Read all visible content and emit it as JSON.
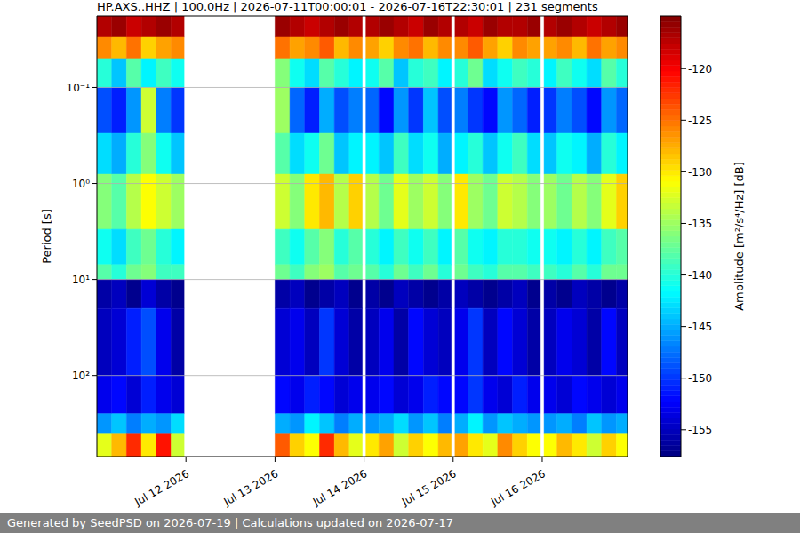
{
  "chart_data": {
    "type": "heatmap",
    "title": "HP.AXS..HHZ | 100.0Hz | 2026-07-11T00:00:01 - 2026-07-16T22:30:01 | 231 segments",
    "ylabel": "Period [s]",
    "footer": "Generated by SeedPSD on 2026-07-19 | Calculations updated on 2026-07-17",
    "log": "y",
    "grid": "y",
    "xlim": [
      "2026-07-11T00:00",
      "2026-07-16T23:00"
    ],
    "xticks": [
      {
        "value": "2026-07-12T00:00",
        "label": "Jul 12 2026"
      },
      {
        "value": "2026-07-13T00:00",
        "label": "Jul 13 2026"
      },
      {
        "value": "2026-07-14T00:00",
        "label": "Jul 14 2026"
      },
      {
        "value": "2026-07-15T00:00",
        "label": "Jul 15 2026"
      },
      {
        "value": "2026-07-16T00:00",
        "label": "Jul 16 2026"
      }
    ],
    "ylim": [
      0.018,
      700
    ],
    "yticks": [
      {
        "value": 0.1,
        "label": "10⁻¹"
      },
      {
        "value": 1,
        "label": "10⁰"
      },
      {
        "value": 10,
        "label": "10¹"
      },
      {
        "value": 100,
        "label": "10²"
      }
    ],
    "x_edges": [
      "2026-07-11T00:00",
      "2026-07-11T04:00",
      "2026-07-11T08:00",
      "2026-07-11T12:00",
      "2026-07-11T16:00",
      "2026-07-11T20:00",
      "2026-07-11T23:30",
      "2026-07-13T00:00",
      "2026-07-13T04:00",
      "2026-07-13T08:00",
      "2026-07-13T12:00",
      "2026-07-13T16:00",
      "2026-07-13T20:00",
      "2026-07-13T23:30",
      "2026-07-14T00:30",
      "2026-07-14T04:00",
      "2026-07-14T08:00",
      "2026-07-14T12:00",
      "2026-07-14T16:00",
      "2026-07-14T20:00",
      "2026-07-14T23:30",
      "2026-07-15T00:30",
      "2026-07-15T04:00",
      "2026-07-15T08:00",
      "2026-07-15T12:00",
      "2026-07-15T16:00",
      "2026-07-15T20:00",
      "2026-07-15T23:30",
      "2026-07-16T00:30",
      "2026-07-16T04:00",
      "2026-07-16T08:00",
      "2026-07-16T12:00",
      "2026-07-16T16:00",
      "2026-07-16T20:00",
      "2026-07-16T23:00"
    ],
    "y_edges": [
      0.018,
      0.03,
      0.05,
      0.1,
      0.3,
      0.8,
      3,
      7,
      10,
      20,
      100,
      250,
      400,
      700
    ],
    "cells": [
      [
        -117,
        -116,
        -118,
        -117,
        -116,
        -117,
        null,
        -116,
        -117,
        -118,
        -117,
        -116,
        -117,
        null,
        -117,
        -116,
        -117,
        -118,
        -116,
        -117,
        null,
        -117,
        -118,
        -116,
        -117,
        -117,
        -116,
        null,
        -117,
        -116,
        -117,
        -118,
        -117,
        -116
      ],
      [
        -126,
        -128,
        -125,
        -129,
        -127,
        -126,
        null,
        -125,
        -127,
        -126,
        -124,
        -128,
        -126,
        null,
        -127,
        -129,
        -126,
        -125,
        -128,
        -126,
        null,
        -126,
        -124,
        -127,
        -129,
        -126,
        -127,
        null,
        -127,
        -126,
        -128,
        -125,
        -127,
        -126
      ],
      [
        -140,
        -144,
        -138,
        -142,
        -139,
        -141,
        null,
        -136,
        -141,
        -143,
        -138,
        -140,
        -142,
        null,
        -141,
        -138,
        -144,
        -140,
        -139,
        -142,
        null,
        -140,
        -137,
        -143,
        -141,
        -139,
        -140,
        null,
        -142,
        -139,
        -141,
        -143,
        -138,
        -140
      ],
      [
        -149,
        -151,
        -146,
        -133,
        -147,
        -150,
        null,
        -135,
        -148,
        -151,
        -145,
        -149,
        -147,
        null,
        -148,
        -152,
        -146,
        -150,
        -144,
        -149,
        null,
        -147,
        -150,
        -152,
        -146,
        -148,
        -151,
        null,
        -150,
        -147,
        -149,
        -152,
        -146,
        -148
      ],
      [
        -143,
        -145,
        -140,
        -136,
        -141,
        -144,
        null,
        -138,
        -143,
        -141,
        -137,
        -144,
        -142,
        null,
        -142,
        -144,
        -139,
        -143,
        -141,
        -145,
        null,
        -142,
        -140,
        -144,
        -141,
        -139,
        -143,
        null,
        -144,
        -141,
        -142,
        -145,
        -140,
        -142
      ],
      [
        -136,
        -138,
        -134,
        -131,
        -133,
        -135,
        null,
        -133,
        -136,
        -130,
        -128,
        -134,
        -129,
        null,
        -134,
        -137,
        -132,
        -135,
        -133,
        -136,
        null,
        -130,
        -135,
        -137,
        -133,
        -134,
        -136,
        null,
        -135,
        -137,
        -134,
        -136,
        -132,
        -129
      ],
      [
        -141,
        -143,
        -139,
        -137,
        -140,
        -142,
        null,
        -139,
        -141,
        -138,
        -136,
        -140,
        -138,
        null,
        -140,
        -142,
        -139,
        -141,
        -139,
        -142,
        null,
        -138,
        -141,
        -142,
        -140,
        -140,
        -141,
        null,
        -141,
        -142,
        -140,
        -142,
        -139,
        -138
      ],
      [
        -138,
        -140,
        -137,
        -136,
        -139,
        -139,
        null,
        -137,
        -139,
        -136,
        -135,
        -138,
        -137,
        null,
        -138,
        -140,
        -137,
        -139,
        -137,
        -140,
        null,
        -137,
        -139,
        -140,
        -138,
        -138,
        -139,
        null,
        -139,
        -140,
        -138,
        -140,
        -137,
        -137
      ],
      [
        -156,
        -155,
        -157,
        -154,
        -156,
        -157,
        null,
        -156,
        -155,
        -157,
        -156,
        -155,
        -157,
        null,
        -156,
        -157,
        -155,
        -156,
        -157,
        -156,
        null,
        -155,
        -156,
        -157,
        -156,
        -155,
        -157,
        null,
        -156,
        -157,
        -155,
        -156,
        -157,
        -156
      ],
      [
        -155,
        -154,
        -151,
        -149,
        -153,
        -156,
        null,
        -154,
        -153,
        -155,
        -150,
        -154,
        -156,
        null,
        -155,
        -153,
        -156,
        -152,
        -154,
        -155,
        null,
        -153,
        -150,
        -155,
        -152,
        -154,
        -156,
        null,
        -155,
        -153,
        -154,
        -156,
        -152,
        -155
      ],
      [
        -153,
        -152,
        -154,
        -151,
        -153,
        -154,
        null,
        -152,
        -153,
        -151,
        -152,
        -154,
        -153,
        null,
        -153,
        -152,
        -154,
        -153,
        -151,
        -152,
        null,
        -152,
        -150,
        -153,
        -154,
        -151,
        -153,
        null,
        -153,
        -154,
        -152,
        -153,
        -154,
        -153
      ],
      [
        -146,
        -144,
        -147,
        -145,
        -146,
        -143,
        null,
        -145,
        -146,
        -142,
        -144,
        -147,
        -145,
        null,
        -146,
        -145,
        -143,
        -146,
        -144,
        -147,
        null,
        -145,
        -142,
        -146,
        -144,
        -145,
        -146,
        null,
        -146,
        -145,
        -147,
        -144,
        -146,
        -145
      ],
      [
        -132,
        -128,
        -122,
        -130,
        -121,
        -133,
        null,
        -124,
        -129,
        -131,
        -122,
        -128,
        -132,
        null,
        -130,
        -127,
        -133,
        -129,
        -131,
        -128,
        null,
        -127,
        -130,
        -132,
        -126,
        -129,
        -131,
        null,
        -131,
        -128,
        -130,
        -133,
        -129,
        -131
      ]
    ],
    "colorbar": {
      "label": "Amplitude [m²/s⁴/Hz] [dB]",
      "lim": [
        -157.6,
        -114.9
      ],
      "ticks": [
        -155,
        -150,
        -145,
        -140,
        -135,
        -130,
        -125,
        -120
      ]
    }
  }
}
